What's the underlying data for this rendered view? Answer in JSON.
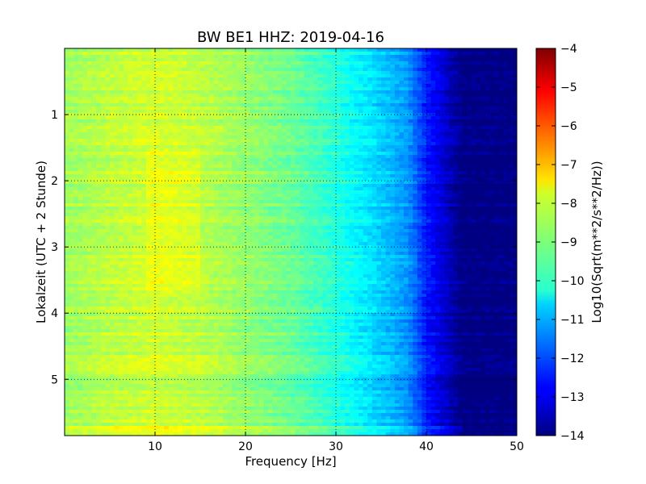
{
  "chart_data": {
    "type": "heatmap",
    "title": "BW BE1 HHZ: 2019-04-16",
    "xlabel": "Frequency [Hz]",
    "ylabel": "Lokalzeit (UTC + 2 Stunde)",
    "xlim": [
      0,
      50
    ],
    "ylim": [
      5.85,
      0
    ],
    "y_inverted": true,
    "x_ticks": [
      10,
      20,
      30,
      40,
      50
    ],
    "y_ticks": [
      1,
      2,
      3,
      4,
      5
    ],
    "grid": true,
    "colormap": "jet",
    "colorbar": {
      "label": "Log10(Sqrt(m**2/s**2/Hz))",
      "range": [
        -14,
        -4
      ],
      "ticks": [
        -4,
        -5,
        -6,
        -7,
        -8,
        -9,
        -10,
        -11,
        -12,
        -13,
        -14
      ]
    },
    "frequency_profile_hz": [
      0,
      5,
      10,
      15,
      20,
      25,
      30,
      33,
      36,
      38,
      40,
      42,
      44,
      50
    ],
    "frequency_profile_value": [
      -8.7,
      -8.4,
      -8.2,
      -8.4,
      -8.8,
      -9.2,
      -9.9,
      -10.4,
      -10.9,
      -11.3,
      -12.5,
      -13.2,
      -14,
      -14
    ],
    "notes_band_hours": 5.75
  }
}
